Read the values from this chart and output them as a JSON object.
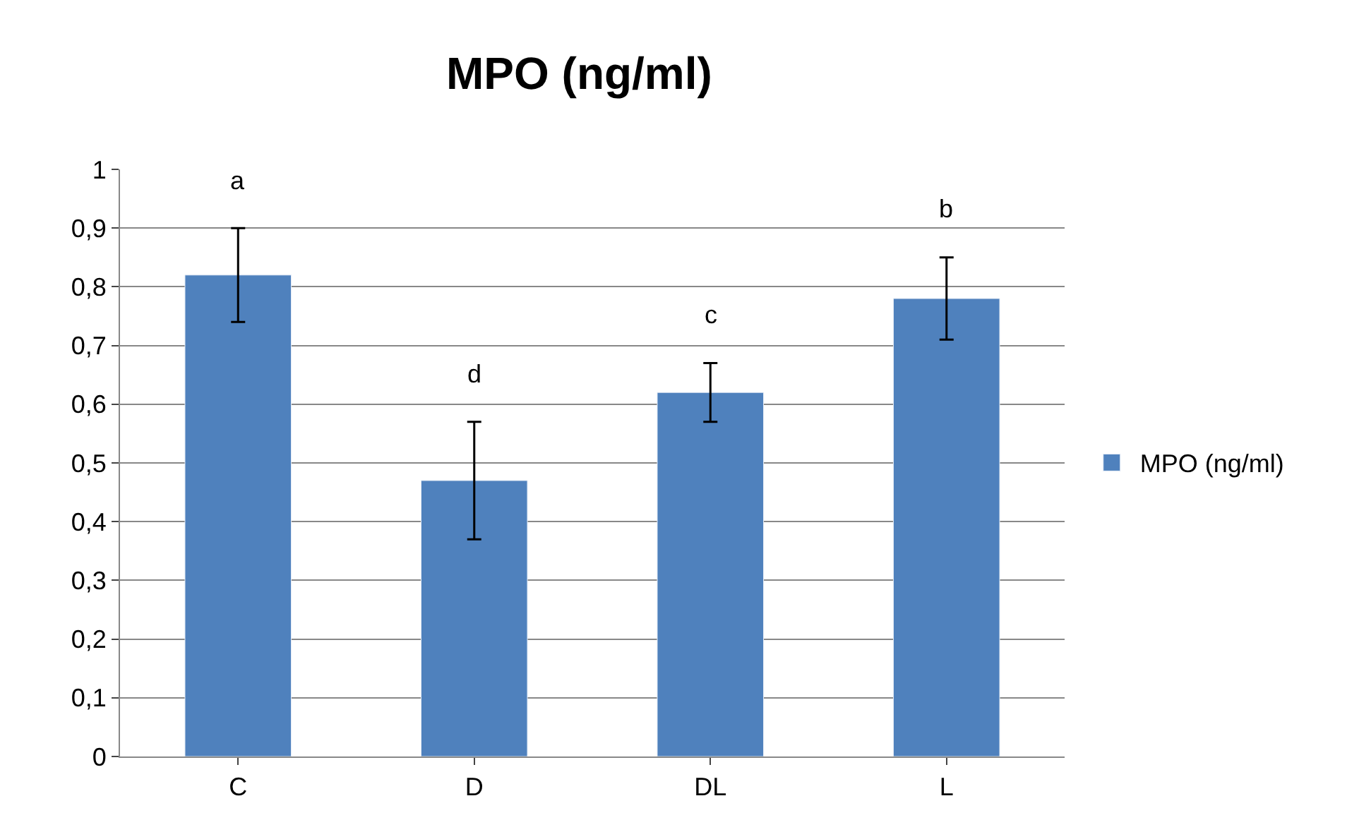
{
  "chart_data": {
    "type": "bar",
    "title": "MPO (ng/ml)",
    "categories": [
      "C",
      "D",
      "DL",
      "L"
    ],
    "series": [
      {
        "name": "MPO (ng/ml)",
        "color": "#4f81bd",
        "values": [
          0.82,
          0.47,
          0.62,
          0.78
        ],
        "errors": [
          [
            0.74,
            0.9
          ],
          [
            0.37,
            0.57
          ],
          [
            0.57,
            0.67
          ],
          [
            0.71,
            0.85
          ]
        ]
      }
    ],
    "ylim": [
      0,
      1
    ],
    "yticks": [
      0,
      {
        "value": 0.1,
        "label": "0,1"
      },
      {
        "value": 0.2,
        "label": "0,2"
      },
      {
        "value": 0.3,
        "label": "0,3"
      },
      {
        "value": 0.4,
        "label": "0,4"
      },
      {
        "value": 0.5,
        "label": "0,5"
      },
      {
        "value": 0.6,
        "label": "0,6"
      },
      {
        "value": 0.7,
        "label": "0,7"
      },
      {
        "value": 0.8,
        "label": "0,8"
      },
      {
        "value": 0.9,
        "label": "0,9"
      },
      1
    ],
    "annotations": [
      "a",
      "d",
      "c",
      "b"
    ],
    "grid": "y",
    "legend": "right"
  }
}
